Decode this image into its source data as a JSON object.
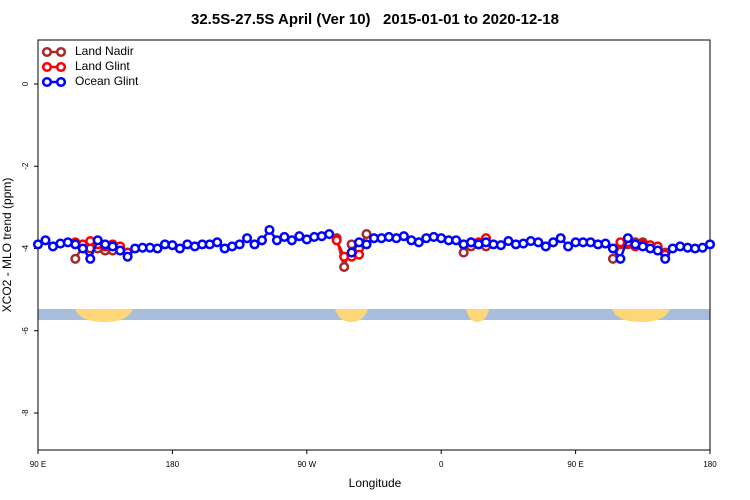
{
  "chart_data": {
    "type": "line",
    "title": "32.5S-27.5S April (Ver 10)   2015-01-01 to 2020-12-18",
    "x_label": "Longitude",
    "y_label": "XCO2 - MLO trend (ppm)",
    "xlim": [
      90,
      540
    ],
    "xticks": [
      {
        "value": 90,
        "label": "90 E"
      },
      {
        "value": 180,
        "label": "180"
      },
      {
        "value": 270,
        "label": "90 W"
      },
      {
        "value": 360,
        "label": "0"
      },
      {
        "value": 450,
        "label": "90 E"
      },
      {
        "value": 540,
        "label": "180"
      }
    ],
    "ylim": [
      -8.9,
      1.07
    ],
    "yticks": [
      0,
      -2,
      -4,
      -6,
      -8
    ],
    "legend": "top-left",
    "series": [
      {
        "name": "Land Nadir",
        "color": "#a52a2a",
        "x": [
          115,
          120,
          125,
          130,
          135,
          140,
          145,
          290,
          295,
          300,
          305,
          310,
          315,
          375,
          380,
          385,
          390,
          395,
          475,
          480,
          485,
          490,
          495,
          500,
          505,
          510
        ],
        "values": [
          -4.25,
          -3.95,
          -4.0,
          -4.0,
          -4.05,
          -4.05,
          null,
          -3.75,
          -4.45,
          -3.9,
          -4.0,
          -3.65,
          null,
          -4.1,
          -3.95,
          -3.9,
          -3.95,
          null,
          -4.25,
          -3.9,
          -3.9,
          -3.85,
          -3.85,
          -3.95,
          -4.0,
          -4.1
        ]
      },
      {
        "name": "Land Glint",
        "color": "#ff0000",
        "x": [
          115,
          120,
          125,
          130,
          135,
          140,
          145,
          150,
          155,
          290,
          295,
          300,
          305,
          310,
          375,
          380,
          385,
          390,
          395,
          480,
          485,
          490,
          495,
          500,
          505,
          510
        ],
        "values": [
          -3.85,
          -3.9,
          -3.82,
          -3.9,
          -3.95,
          -3.9,
          -3.95,
          -4.1,
          null,
          -3.8,
          -4.2,
          -4.2,
          -4.15,
          null,
          -3.9,
          -3.85,
          -3.85,
          -3.75,
          null,
          -3.85,
          -3.85,
          -3.95,
          -3.9,
          -3.92,
          -3.95,
          -4.15
        ]
      },
      {
        "name": "Ocean Glint",
        "color": "#0000ff",
        "x": [
          90,
          95,
          100,
          105,
          110,
          115,
          120,
          125,
          130,
          135,
          140,
          145,
          150,
          155,
          160,
          165,
          170,
          175,
          180,
          185,
          190,
          195,
          200,
          205,
          210,
          215,
          220,
          225,
          230,
          235,
          240,
          245,
          250,
          255,
          260,
          265,
          270,
          275,
          280,
          285,
          290,
          295,
          300,
          305,
          310,
          315,
          320,
          325,
          330,
          335,
          340,
          345,
          350,
          355,
          360,
          365,
          370,
          375,
          380,
          385,
          390,
          395,
          400,
          405,
          410,
          415,
          420,
          425,
          430,
          435,
          440,
          445,
          450,
          455,
          460,
          465,
          470,
          475,
          480,
          485,
          490,
          495,
          500,
          505,
          510,
          515,
          520,
          525,
          530,
          535,
          540
        ],
        "values": [
          -3.9,
          -3.8,
          -3.95,
          -3.88,
          -3.85,
          -3.9,
          -4.0,
          -4.25,
          -3.8,
          -3.9,
          -3.95,
          -4.05,
          -4.2,
          -4.0,
          -3.98,
          -3.98,
          -4.0,
          -3.9,
          -3.92,
          -4.0,
          -3.9,
          -3.95,
          -3.9,
          -3.9,
          -3.85,
          -4.0,
          -3.95,
          -3.9,
          -3.75,
          -3.9,
          -3.8,
          -3.55,
          -3.8,
          -3.72,
          -3.8,
          -3.7,
          -3.78,
          -3.72,
          -3.7,
          -3.65,
          null,
          null,
          -4.1,
          -3.85,
          -3.9,
          -3.75,
          -3.75,
          -3.72,
          -3.75,
          -3.7,
          -3.8,
          -3.85,
          -3.75,
          -3.72,
          -3.75,
          -3.8,
          -3.8,
          -3.9,
          -3.85,
          -3.9,
          -3.85,
          -3.9,
          -3.92,
          -3.82,
          -3.9,
          -3.88,
          -3.82,
          -3.85,
          -3.95,
          -3.85,
          -3.75,
          -3.95,
          -3.85,
          -3.85,
          -3.85,
          -3.9,
          -3.88,
          -4.0,
          -4.25,
          -3.75,
          -3.9,
          -3.95,
          -4.0,
          -4.05,
          -4.25,
          -4.0,
          -3.95,
          -3.98,
          -4.0,
          -3.98,
          -3.9
        ]
      }
    ]
  }
}
